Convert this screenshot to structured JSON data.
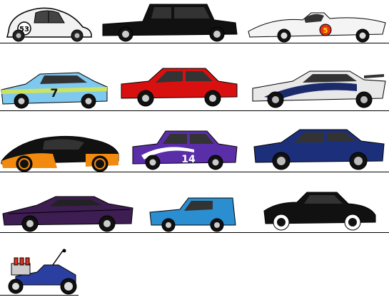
{
  "cars": [
    {
      "name": "beetle",
      "number": "53",
      "body_color": "#f2f2f2"
    },
    {
      "name": "black-limousine",
      "body_color": "#111111"
    },
    {
      "name": "mach5-racer",
      "number": "5",
      "body_color": "#f4f4f4"
    },
    {
      "name": "blue-coupe",
      "number": "7",
      "body_color": "#7fc8f0"
    },
    {
      "name": "red-sedan",
      "body_color": "#d81010"
    },
    {
      "name": "bmw-m3-gtr",
      "body_color": "#e8e8e8"
    },
    {
      "name": "bugatti-veyron",
      "body_color": "#111111"
    },
    {
      "name": "purple-anglia",
      "number": "14",
      "body_color": "#5a2ea8"
    },
    {
      "name": "dodge-charger",
      "body_color": "#1c2f7a"
    },
    {
      "name": "purple-muscle-car",
      "body_color": "#3d1d52"
    },
    {
      "name": "reliant-regal-van",
      "body_color": "#2a8ed0"
    },
    {
      "name": "black-coupe-1940s",
      "body_color": "#111111"
    },
    {
      "name": "hot-rod",
      "body_color": "#2a3fa0"
    }
  ]
}
